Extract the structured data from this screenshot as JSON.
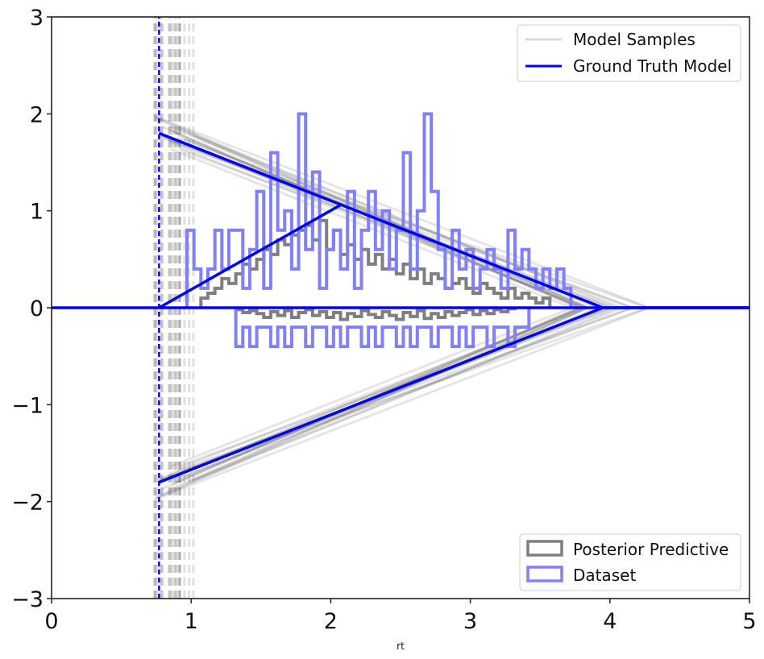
{
  "chart_data": {
    "type": "line",
    "xlabel": "rt",
    "ylabel": "",
    "xlim": [
      0,
      5
    ],
    "ylim": [
      -3,
      3
    ],
    "x_ticks": [
      0,
      1,
      2,
      3,
      4,
      5
    ],
    "y_ticks": [
      -3,
      -2,
      -1,
      0,
      1,
      2,
      3
    ],
    "y_tick_labels": [
      "−3",
      "−2",
      "−1",
      "0",
      "1",
      "2",
      "3"
    ],
    "grid": false,
    "colors": {
      "ground_truth": "#0000ff",
      "model_samples": "#000000",
      "posterior_predictive": "#7f7f7f",
      "dataset": "#7f7fff"
    },
    "ground_truth": {
      "t": 0.77,
      "a": 1.8,
      "boundary_collapse_time": 3.95,
      "start_point": [
        0.77,
        0.0
      ],
      "crossing": [
        2.07,
        1.06
      ],
      "upper_boundary": [
        [
          0.77,
          1.8
        ],
        [
          3.95,
          0.0
        ],
        [
          5.0,
          0.0
        ]
      ],
      "lower_boundary": [
        [
          0.77,
          -1.8
        ],
        [
          3.95,
          0.0
        ],
        [
          5.0,
          0.0
        ]
      ],
      "trajectory": [
        [
          0.77,
          0.0
        ],
        [
          2.07,
          1.06
        ]
      ]
    },
    "model_samples_summary": {
      "count": 20,
      "t_range": [
        0.72,
        1.02
      ],
      "a_range": [
        1.6,
        2.0
      ],
      "collapse_range": [
        3.7,
        4.3
      ]
    },
    "histograms": {
      "bin_width": 0.05,
      "posterior_predictive_upper": {
        "x_start": 1.07,
        "heights": [
          0.1,
          0.15,
          0.2,
          0.3,
          0.25,
          0.35,
          0.45,
          0.4,
          0.5,
          0.6,
          0.55,
          0.7,
          0.65,
          0.75,
          0.8,
          0.85,
          0.7,
          0.9,
          0.6,
          0.8,
          0.55,
          0.65,
          0.5,
          0.6,
          0.45,
          0.55,
          0.4,
          0.5,
          0.35,
          0.45,
          0.3,
          0.4,
          0.25,
          0.35,
          0.3,
          0.2,
          0.25,
          0.3,
          0.2,
          0.15,
          0.25,
          0.2,
          0.15,
          0.1,
          0.2,
          0.1,
          0.15,
          0.1,
          0.05,
          0.1
        ]
      },
      "posterior_predictive_lower": {
        "x_start": 1.32,
        "heights": [
          -0.02,
          -0.05,
          -0.03,
          -0.06,
          -0.1,
          -0.04,
          -0.08,
          -0.03,
          -0.1,
          -0.05,
          -0.02,
          -0.08,
          -0.04,
          -0.1,
          -0.05,
          -0.12,
          -0.06,
          -0.09,
          -0.03,
          -0.07,
          -0.1,
          -0.04,
          -0.08,
          -0.12,
          -0.05,
          -0.09,
          -0.03,
          -0.11,
          -0.06,
          -0.1,
          -0.04,
          -0.08,
          -0.05,
          -0.02,
          -0.07,
          -0.03,
          -0.06,
          -0.02,
          -0.04,
          -0.01
        ]
      },
      "dataset_upper": {
        "x_start": 0.97,
        "heights": [
          0.8,
          0.4,
          0.2,
          0.4,
          0.8,
          0.4,
          0.8,
          0.8,
          0.2,
          0.6,
          1.2,
          0.2,
          1.6,
          0.8,
          1.0,
          0.4,
          2.0,
          0.6,
          1.4,
          0.2,
          0.6,
          0.8,
          0.4,
          1.2,
          0.2,
          0.8,
          1.2,
          0.6,
          1.0,
          0.4,
          0.8,
          1.6,
          0.4,
          1.0,
          2.0,
          1.2,
          0.6,
          0.2,
          0.8,
          0.4,
          0.6,
          0.2,
          0.4,
          0.6,
          0.4,
          0.2,
          0.8,
          0.4,
          0.6,
          0.4,
          0.2,
          0.4,
          0.2,
          0.4,
          0.2
        ]
      },
      "dataset_lower": {
        "x_start": 1.32,
        "heights": [
          -0.4,
          -0.2,
          -0.4,
          -0.2,
          -0.2,
          -0.4,
          -0.2,
          -0.4,
          -0.2,
          -0.2,
          -0.4,
          -0.2,
          -0.2,
          -0.4,
          -0.2,
          -0.4,
          -0.2,
          -0.2,
          -0.4,
          -0.2,
          -0.4,
          -0.2,
          -0.2,
          -0.4,
          -0.2,
          -0.4,
          -0.2,
          -0.2,
          -0.4,
          -0.2,
          -0.2,
          -0.4,
          -0.2,
          -0.4,
          -0.2,
          -0.2,
          -0.4,
          -0.2,
          -0.2,
          -0.4,
          -0.2,
          -0.2
        ]
      }
    },
    "legends": {
      "top": {
        "placement": "top-right",
        "entries": [
          {
            "label": "Model Samples",
            "style": "line",
            "color": "#d9d9d9"
          },
          {
            "label": "Ground Truth Model",
            "style": "line",
            "color": "#0000ff"
          }
        ]
      },
      "bottom": {
        "placement": "bottom-right",
        "entries": [
          {
            "label": "Posterior Predictive",
            "style": "patch",
            "color": "#7f7f7f"
          },
          {
            "label": "Dataset",
            "style": "patch",
            "color": "#7f7fff"
          }
        ]
      }
    }
  }
}
